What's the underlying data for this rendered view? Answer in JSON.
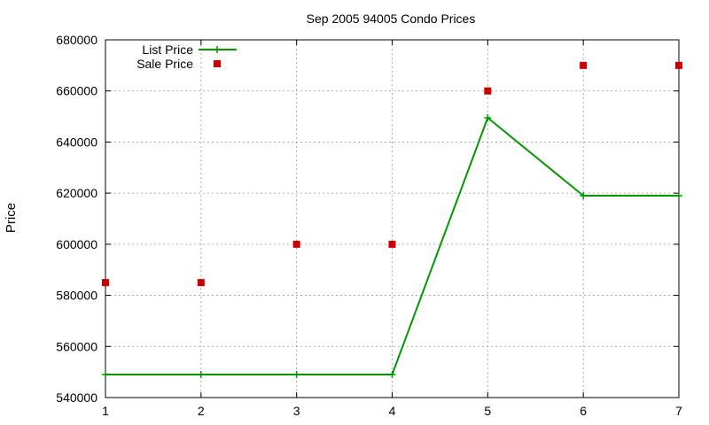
{
  "chart_data": {
    "type": "line",
    "title": "Sep 2005 94005 Condo Prices",
    "xlabel": "",
    "ylabel": "Price",
    "x": [
      1,
      2,
      3,
      4,
      5,
      6,
      7
    ],
    "xlim": [
      1,
      7
    ],
    "ylim": [
      540000,
      680000
    ],
    "xticks": [
      1,
      2,
      3,
      4,
      5,
      6,
      7
    ],
    "yticks": [
      540000,
      560000,
      580000,
      600000,
      620000,
      640000,
      660000,
      680000
    ],
    "grid": true,
    "legend_position": "top-left",
    "series": [
      {
        "name": "List Price",
        "style": "line-with-plus-markers",
        "color": "#009900",
        "values": [
          549000,
          549000,
          549000,
          549000,
          649500,
          619000,
          619000
        ]
      },
      {
        "name": "Sale Price",
        "style": "square-markers",
        "color": "#cc0000",
        "values": [
          585000,
          585000,
          600000,
          600000,
          660000,
          670000,
          670000
        ]
      }
    ]
  }
}
